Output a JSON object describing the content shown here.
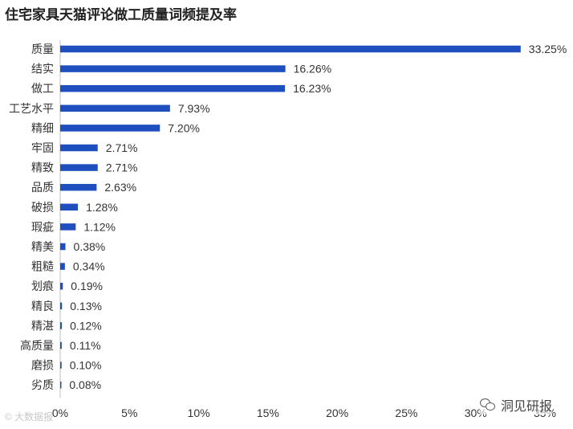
{
  "title": "住宅家具天猫评论做工质量词频提及率",
  "chart_data": {
    "type": "bar",
    "orientation": "horizontal",
    "categories": [
      "质量",
      "结实",
      "做工",
      "工艺水平",
      "精细",
      "牢固",
      "精致",
      "品质",
      "破损",
      "瑕疵",
      "精美",
      "粗糙",
      "划痕",
      "精良",
      "精湛",
      "高质量",
      "磨损",
      "劣质"
    ],
    "values": [
      33.25,
      16.26,
      16.23,
      7.93,
      7.2,
      2.71,
      2.71,
      2.63,
      1.28,
      1.12,
      0.38,
      0.34,
      0.19,
      0.13,
      0.12,
      0.11,
      0.1,
      0.08
    ],
    "value_labels": [
      "33.25%",
      "16.26%",
      "16.23%",
      "7.93%",
      "7.20%",
      "2.71%",
      "2.71%",
      "2.63%",
      "1.28%",
      "1.12%",
      "0.38%",
      "0.34%",
      "0.19%",
      "0.13%",
      "0.12%",
      "0.11%",
      "0.10%",
      "0.08%"
    ],
    "xticks": [
      0,
      5,
      10,
      15,
      20,
      25,
      30,
      35
    ],
    "xtick_labels": [
      "0%",
      "5%",
      "10%",
      "15%",
      "20%",
      "25%",
      "30%",
      "35%"
    ],
    "xlim": [
      0,
      35
    ],
    "grid": false,
    "bar_color": "#1f4fbf"
  },
  "watermarks": {
    "left": "© 大数据报",
    "right": "洞见研报"
  }
}
